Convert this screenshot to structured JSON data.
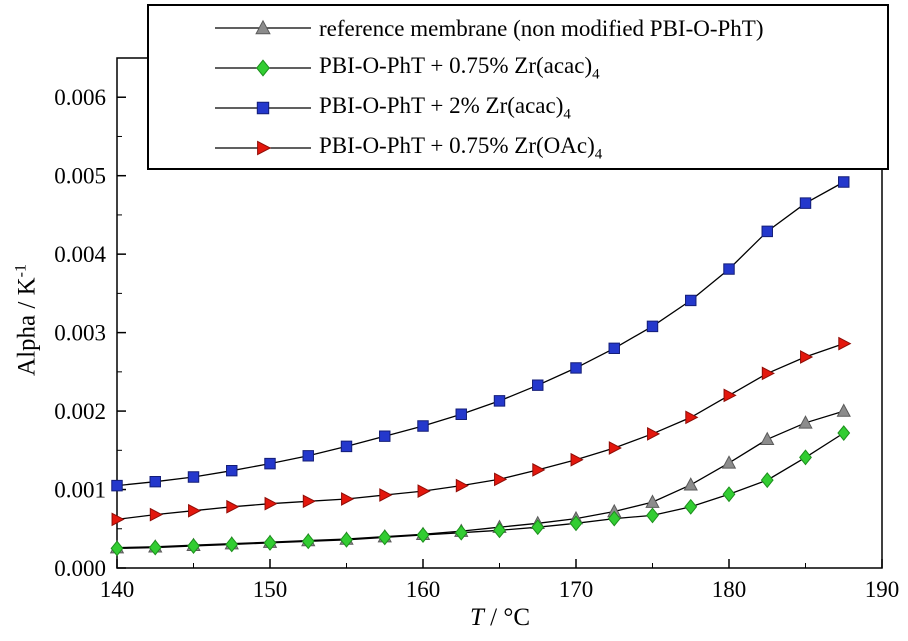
{
  "chart_data": {
    "type": "line",
    "grid": false,
    "legend_position": "top-inside",
    "xlabel_italic": "T",
    "xlabel_rest": " / °C",
    "ylabel_main": "Alpha / K",
    "ylabel_sup": "-1",
    "xlim": [
      140,
      190
    ],
    "ylim": [
      0,
      0.0065
    ],
    "x_ticks": [
      140,
      150,
      160,
      170,
      180,
      190
    ],
    "x_minor_ticks": [
      145,
      155,
      165,
      175,
      185
    ],
    "y_ticks": [
      0,
      0.001,
      0.002,
      0.003,
      0.004,
      0.005,
      0.006
    ],
    "y_tick_labels": [
      "0.000",
      "0.001",
      "0.002",
      "0.003",
      "0.004",
      "0.005",
      "0.006"
    ],
    "y_minor_ticks": [
      0.0005,
      0.0015,
      0.0025,
      0.0035,
      0.0045,
      0.0055
    ],
    "x": [
      140,
      142.5,
      145,
      147.5,
      150,
      152.5,
      155,
      157.5,
      160,
      162.5,
      165,
      167.5,
      170,
      172.5,
      175,
      177.5,
      180,
      182.5,
      185,
      187.5
    ],
    "series": [
      {
        "id": "reference",
        "label_main": "reference membrane (non modified PBI-O-PhT)",
        "label_sub": "",
        "marker": "triangle-up",
        "color": "#8c8c8c",
        "edge": "#5a5a5a",
        "line_color": "#000000",
        "values": [
          0.00026,
          0.00027,
          0.00029,
          0.00031,
          0.00033,
          0.00035,
          0.00037,
          0.0004,
          0.00043,
          0.00047,
          0.00052,
          0.00057,
          0.00063,
          0.00072,
          0.00084,
          0.00106,
          0.00134,
          0.00164,
          0.00185,
          0.002
        ]
      },
      {
        "id": "zr-acac-0-75",
        "label_main": "PBI-O-PhT + 0.75% Zr(acac)",
        "label_sub": "4",
        "marker": "diamond",
        "color": "#32cd32",
        "edge": "#1d8f1d",
        "line_color": "#000000",
        "values": [
          0.00025,
          0.00026,
          0.00028,
          0.0003,
          0.00032,
          0.00034,
          0.00036,
          0.00039,
          0.00042,
          0.00045,
          0.00048,
          0.00052,
          0.00057,
          0.00063,
          0.00067,
          0.00078,
          0.00094,
          0.00112,
          0.00141,
          0.00172
        ]
      },
      {
        "id": "zr-acac-2",
        "label_main": "PBI-O-PhT + 2% Zr(acac)",
        "label_sub": "4",
        "marker": "square",
        "color": "#2438cc",
        "edge": "#131d77",
        "line_color": "#000000",
        "values": [
          0.00105,
          0.0011,
          0.00116,
          0.00124,
          0.00133,
          0.00143,
          0.00155,
          0.00168,
          0.00181,
          0.00196,
          0.00213,
          0.00233,
          0.00255,
          0.0028,
          0.00308,
          0.00341,
          0.00381,
          0.00429,
          0.00465,
          0.00492
        ]
      },
      {
        "id": "zr-oac-0-75",
        "label_main": "PBI-O-PhT + 0.75% Zr(OAc)",
        "label_sub": "4",
        "marker": "triangle-right",
        "color": "#e3170d",
        "edge": "#8f0d07",
        "line_color": "#000000",
        "values": [
          0.00062,
          0.00068,
          0.00073,
          0.00078,
          0.00082,
          0.00085,
          0.00088,
          0.00093,
          0.00098,
          0.00105,
          0.00113,
          0.00125,
          0.00138,
          0.00153,
          0.00171,
          0.00192,
          0.0022,
          0.00248,
          0.00269,
          0.00286
        ]
      }
    ]
  }
}
